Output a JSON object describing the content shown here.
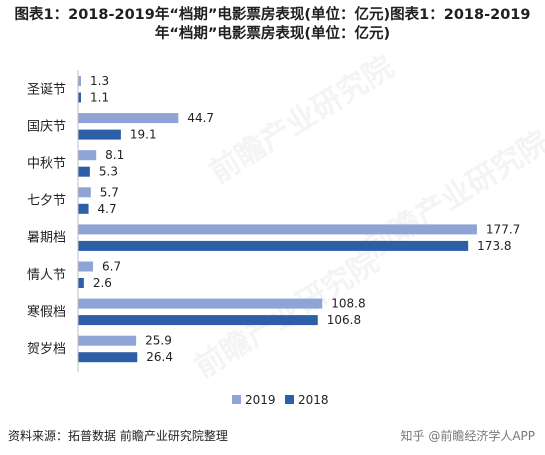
{
  "title": "图表1：2018-2019年“档期”电影票房表现(单位：亿元)图表1：2018-2019年“档期”电影票房表现(单位：亿元)",
  "source": "资料来源：拓普数据 前瞻产业研究院整理",
  "credit": "知乎 @前瞻经济学人APP",
  "watermark": "前瞻产业研究院",
  "colors": {
    "s2019": "#8ea3d6",
    "s2018": "#2f5ea8"
  },
  "chart_data": {
    "type": "bar",
    "orientation": "horizontal",
    "categories": [
      "圣诞节",
      "国庆节",
      "中秋节",
      "七夕节",
      "暑期档",
      "情人节",
      "寒假档",
      "贺岁档"
    ],
    "series": [
      {
        "name": "2019",
        "values": [
          1.3,
          44.7,
          8.1,
          5.7,
          177.7,
          6.7,
          108.8,
          25.9
        ]
      },
      {
        "name": "2018",
        "values": [
          1.1,
          19.1,
          5.3,
          4.7,
          173.8,
          2.6,
          106.8,
          26.4
        ]
      }
    ],
    "legend_position": "bottom",
    "grid": false
  }
}
